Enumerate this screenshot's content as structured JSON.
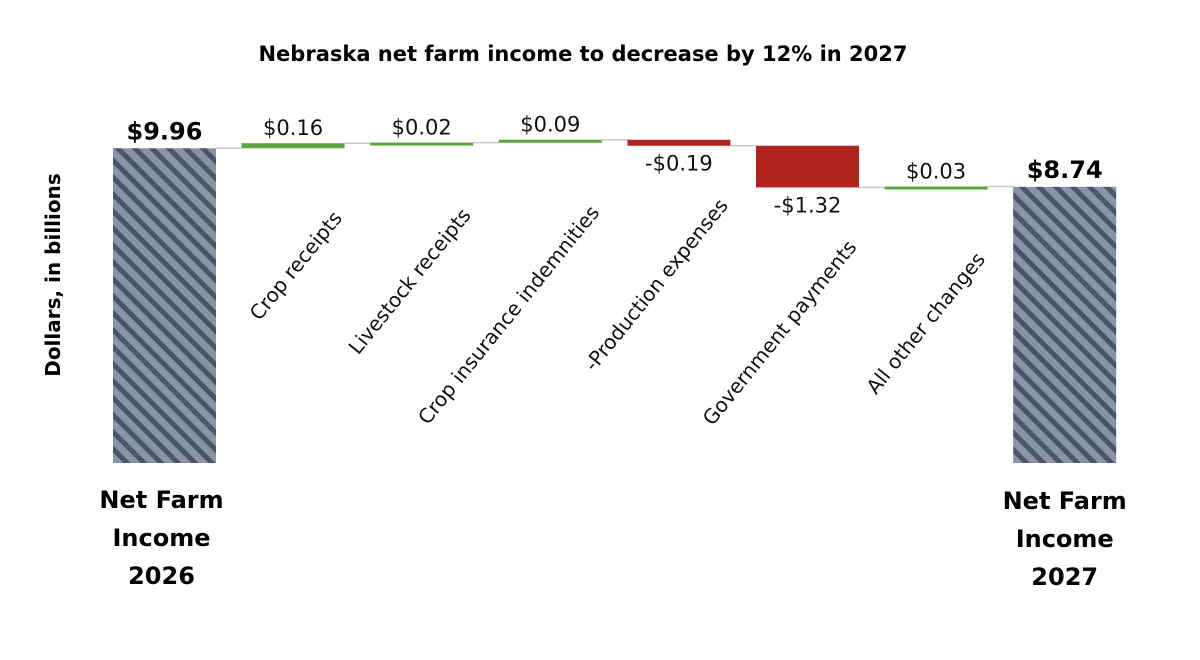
{
  "chart_data": {
    "type": "waterfall",
    "title": "Nebraska net farm income to decrease by 12% in 2027",
    "ylabel": "Dollars, in billions",
    "start": {
      "name_lines": [
        "Net Farm",
        "Income",
        "2026"
      ],
      "value": 9.96,
      "label": "$9.96"
    },
    "steps": [
      {
        "name": "Crop receipts",
        "value": 0.16,
        "label": "$0.16"
      },
      {
        "name": "Livestock receipts",
        "value": 0.02,
        "label": "$0.02"
      },
      {
        "name": "Crop insurance indemnities",
        "value": 0.09,
        "label": "$0.09"
      },
      {
        "name": "-Production expenses",
        "value": -0.19,
        "label": "-$0.19"
      },
      {
        "name": "Government payments",
        "value": -1.32,
        "label": "-$1.32"
      },
      {
        "name": "All other changes",
        "value": 0.03,
        "label": "$0.03"
      }
    ],
    "end": {
      "name_lines": [
        "Net Farm",
        "Income",
        "2027"
      ],
      "value": 8.74,
      "label": "$8.74"
    },
    "colors": {
      "total_fill": "#8793a6",
      "total_stripe": "#4b5567",
      "increase": "#5aa53d",
      "decrease": "#b0231c",
      "connector": "#c8c8c8"
    },
    "hatch": "diagonal",
    "grid": false,
    "legend": "none"
  }
}
